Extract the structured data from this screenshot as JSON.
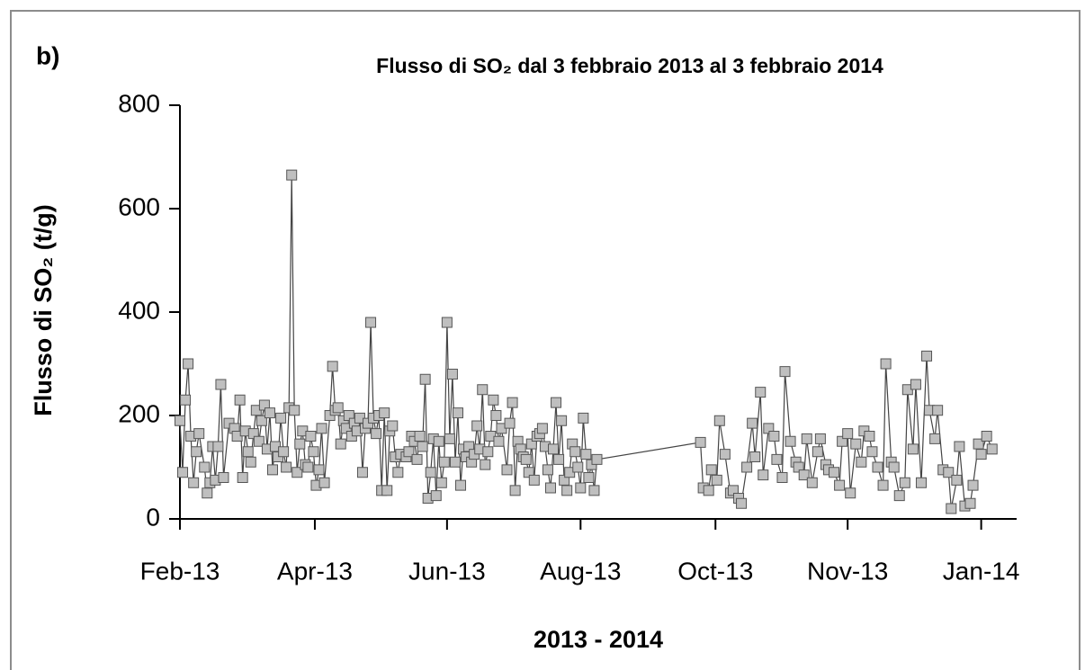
{
  "chart_data": {
    "type": "line",
    "panel_label": "b)",
    "title": "Flusso di SO₂ dal 3 febbraio 2013 al 3 febbraio 2014",
    "x_label": "2013 - 2014",
    "y_label": "Flusso di SO₂  (t/g)",
    "xlim": [
      0,
      307
    ],
    "xticks": [
      {
        "value": 0,
        "label": "Feb-13"
      },
      {
        "value": 49.5,
        "label": "Apr-13"
      },
      {
        "value": 98,
        "label": "Jun-13"
      },
      {
        "value": 147,
        "label": "Aug-13"
      },
      {
        "value": 196.5,
        "label": "Oct-13"
      },
      {
        "value": 245,
        "label": "Nov-13"
      },
      {
        "value": 294,
        "label": "Jan-14"
      }
    ],
    "ylim": [
      0,
      800
    ],
    "yticks": [
      0,
      200,
      400,
      600,
      800
    ],
    "x": [
      0,
      1,
      2,
      3,
      4,
      5,
      6,
      7,
      9,
      10,
      11,
      12,
      13,
      14,
      15,
      16,
      18,
      20,
      21,
      22,
      23,
      24,
      25,
      26,
      27,
      28,
      29,
      30,
      31,
      32,
      33,
      34,
      35,
      36,
      37,
      38,
      39,
      40,
      41,
      42,
      43,
      44,
      45,
      46,
      47,
      48,
      49,
      50,
      51,
      52,
      53,
      55,
      56,
      57,
      58,
      59,
      60,
      61,
      62,
      63,
      64,
      65,
      66,
      67,
      68,
      69,
      70,
      71,
      72,
      73,
      74,
      75,
      76,
      77,
      78,
      79,
      80,
      81,
      83,
      84,
      85,
      86,
      87,
      88,
      89,
      90,
      91,
      92,
      93,
      94,
      95,
      96,
      97,
      98,
      99,
      100,
      101,
      102,
      103,
      104,
      105,
      106,
      107,
      108,
      109,
      110,
      111,
      112,
      113,
      114,
      115,
      116,
      117,
      118,
      120,
      121,
      122,
      123,
      124,
      125,
      126,
      127,
      128,
      129,
      130,
      131,
      132,
      133,
      134,
      135,
      136,
      137,
      138,
      139,
      140,
      141,
      142,
      143,
      144,
      145,
      146,
      147,
      148,
      149,
      150,
      151,
      152,
      153,
      191,
      192,
      194,
      195,
      197,
      198,
      200,
      202,
      203,
      205,
      206,
      208,
      210,
      211,
      213,
      214,
      216,
      218,
      219,
      221,
      222,
      224,
      226,
      227,
      229,
      230,
      232,
      234,
      235,
      237,
      238,
      240,
      242,
      243,
      245,
      246,
      248,
      250,
      251,
      253,
      254,
      256,
      258,
      259,
      261,
      262,
      264,
      266,
      267,
      269,
      270,
      272,
      274,
      275,
      277,
      278,
      280,
      282,
      283,
      285,
      286,
      288,
      290,
      291,
      293,
      294,
      296,
      298
    ],
    "series": [
      {
        "color": "#bfbfbf",
        "line_color": "#444444",
        "values": [
          190,
          90,
          230,
          300,
          160,
          70,
          130,
          165,
          100,
          50,
          70,
          140,
          75,
          140,
          260,
          80,
          185,
          175,
          160,
          230,
          80,
          170,
          130,
          110,
          165,
          210,
          150,
          190,
          220,
          135,
          205,
          95,
          140,
          120,
          195,
          130,
          100,
          215,
          665,
          210,
          90,
          145,
          170,
          105,
          100,
          160,
          130,
          65,
          95,
          175,
          70,
          200,
          295,
          210,
          215,
          145,
          190,
          175,
          200,
          160,
          185,
          170,
          195,
          90,
          175,
          185,
          380,
          195,
          165,
          200,
          55,
          205,
          55,
          170,
          180,
          120,
          90,
          125,
          120,
          130,
          160,
          150,
          115,
          160,
          140,
          270,
          40,
          90,
          155,
          45,
          150,
          70,
          110,
          380,
          155,
          280,
          110,
          205,
          65,
          135,
          120,
          140,
          110,
          125,
          180,
          135,
          250,
          105,
          130,
          160,
          230,
          200,
          150,
          175,
          95,
          185,
          225,
          55,
          150,
          135,
          120,
          115,
          90,
          145,
          75,
          160,
          165,
          175,
          140,
          95,
          60,
          135,
          225,
          115,
          190,
          75,
          55,
          90,
          145,
          130,
          100,
          60,
          195,
          125,
          80,
          105,
          55,
          115,
          148,
          60,
          55,
          95,
          75,
          190,
          125,
          50,
          55,
          40,
          30,
          100,
          185,
          120,
          245,
          85,
          175,
          160,
          115,
          80,
          285,
          150,
          110,
          100,
          85,
          155,
          70,
          130,
          155,
          105,
          95,
          90,
          65,
          150,
          165,
          50,
          145,
          110,
          170,
          160,
          130,
          100,
          65,
          300,
          110,
          100,
          45,
          70,
          250,
          135,
          260,
          70,
          315,
          210,
          155,
          210,
          95,
          90,
          20,
          75,
          140,
          25,
          30,
          65,
          145,
          125,
          160,
          135
        ]
      }
    ]
  }
}
